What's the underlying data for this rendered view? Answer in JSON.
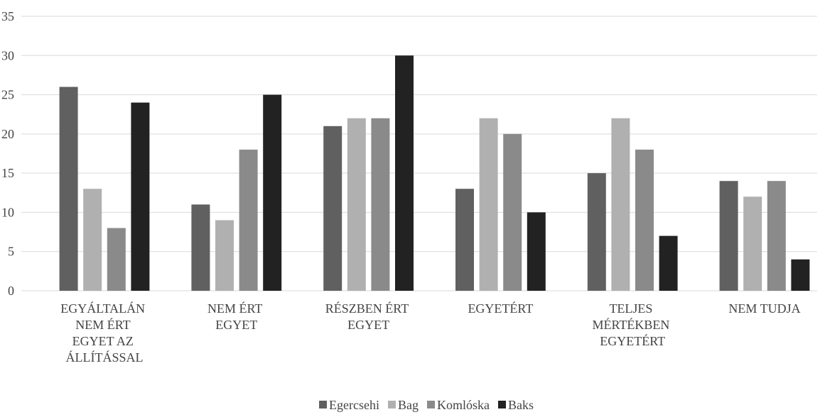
{
  "chart_data": {
    "type": "bar",
    "categories": [
      "EGYÁLTALÁN NEM ÉRT EGYET AZ ÁLLÍTÁSSAL",
      "NEM ÉRT EGYET",
      "RÉSZBEN ÉRT EGYET",
      "EGYETÉRT",
      "TELJES MÉRTÉKBEN EGYETÉRT",
      "NEM TUDJA"
    ],
    "series": [
      {
        "name": "Egercsehi",
        "color": "#606060",
        "values": [
          26,
          11,
          21,
          13,
          15,
          14
        ]
      },
      {
        "name": "Bag",
        "color": "#b0b0b0",
        "values": [
          13,
          9,
          22,
          22,
          22,
          12
        ]
      },
      {
        "name": "Komlóska",
        "color": "#8a8a8a",
        "values": [
          8,
          18,
          22,
          20,
          18,
          14
        ]
      },
      {
        "name": "Baks",
        "color": "#222222",
        "values": [
          24,
          25,
          30,
          10,
          7,
          4
        ]
      }
    ],
    "ylim": [
      0,
      35
    ],
    "yticks": [
      0,
      5,
      10,
      15,
      20,
      25,
      30,
      35
    ],
    "grid": true,
    "legend": "bottom"
  }
}
